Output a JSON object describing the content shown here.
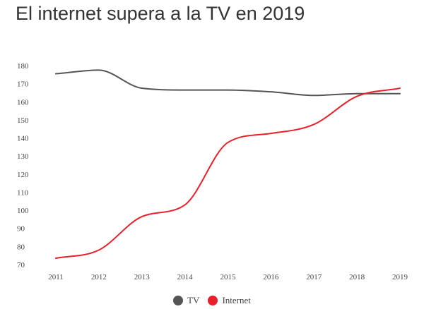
{
  "chart_data": {
    "type": "line",
    "title": "El internet supera a la TV en 2019",
    "xlabel": "",
    "ylabel": "",
    "x": [
      "2011",
      "2012",
      "2013",
      "2014",
      "2015",
      "2016",
      "2017",
      "2018",
      "2019"
    ],
    "ylim": [
      70,
      180
    ],
    "yticks": [
      70,
      80,
      90,
      100,
      110,
      120,
      130,
      140,
      150,
      160,
      170,
      180
    ],
    "grid": false,
    "legend_position": "bottom",
    "series": [
      {
        "name": "TV",
        "color": "#555555",
        "values": [
          175.5,
          177.5,
          167.5,
          166.5,
          166.5,
          165.5,
          163.5,
          164.5,
          164.5
        ]
      },
      {
        "name": "Internet",
        "color": "#e8202a",
        "values": [
          73.5,
          78,
          96.5,
          103,
          137.5,
          142.5,
          147.5,
          163,
          167.5
        ]
      }
    ]
  }
}
